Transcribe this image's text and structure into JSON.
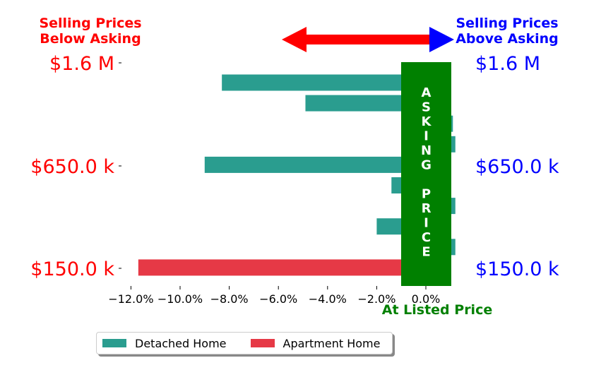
{
  "header": {
    "left_line1": "Selling Prices",
    "left_line2": "Below Asking",
    "right_line1": "Selling Prices",
    "right_line2": "Above Asking"
  },
  "colors": {
    "below": "#ff0000",
    "above": "#0000ff",
    "asking": "#008000",
    "detached": "#2a9d8f",
    "apartment": "#e63946"
  },
  "chart_data": {
    "type": "bar",
    "orientation": "horizontal",
    "xlabel": "At Listed Price",
    "xlim": [
      -12.5,
      1.2
    ],
    "x_ticks": [
      -12,
      -10,
      -8,
      -6,
      -4,
      -2,
      0
    ],
    "x_tick_labels": [
      "−12.0%",
      "−10.0%",
      "−8.0%",
      "−6.0%",
      "−4.0%",
      "−2.0%",
      "0.0%"
    ],
    "y_tick_labels": [
      "$1.6 M",
      "$650.0 k",
      "$150.0 k"
    ],
    "band_label": "ASKING PRICE",
    "series": [
      {
        "name": "Detached Home",
        "bars": [
          {
            "y": 9,
            "value": -8.3
          },
          {
            "y": 8,
            "value": -4.9
          },
          {
            "y": 7,
            "value": 1.1
          },
          {
            "y": 6,
            "value": 1.2
          },
          {
            "y": 5,
            "value": -9.0
          },
          {
            "y": 4,
            "value": -1.4
          },
          {
            "y": 3,
            "value": 1.2
          },
          {
            "y": 2,
            "value": -2.0
          },
          {
            "y": 1,
            "value": 1.2
          }
        ]
      },
      {
        "name": "Apartment Home",
        "bars": [
          {
            "y": 0,
            "value": -11.7
          }
        ]
      }
    ],
    "legend": "bottom-left"
  }
}
